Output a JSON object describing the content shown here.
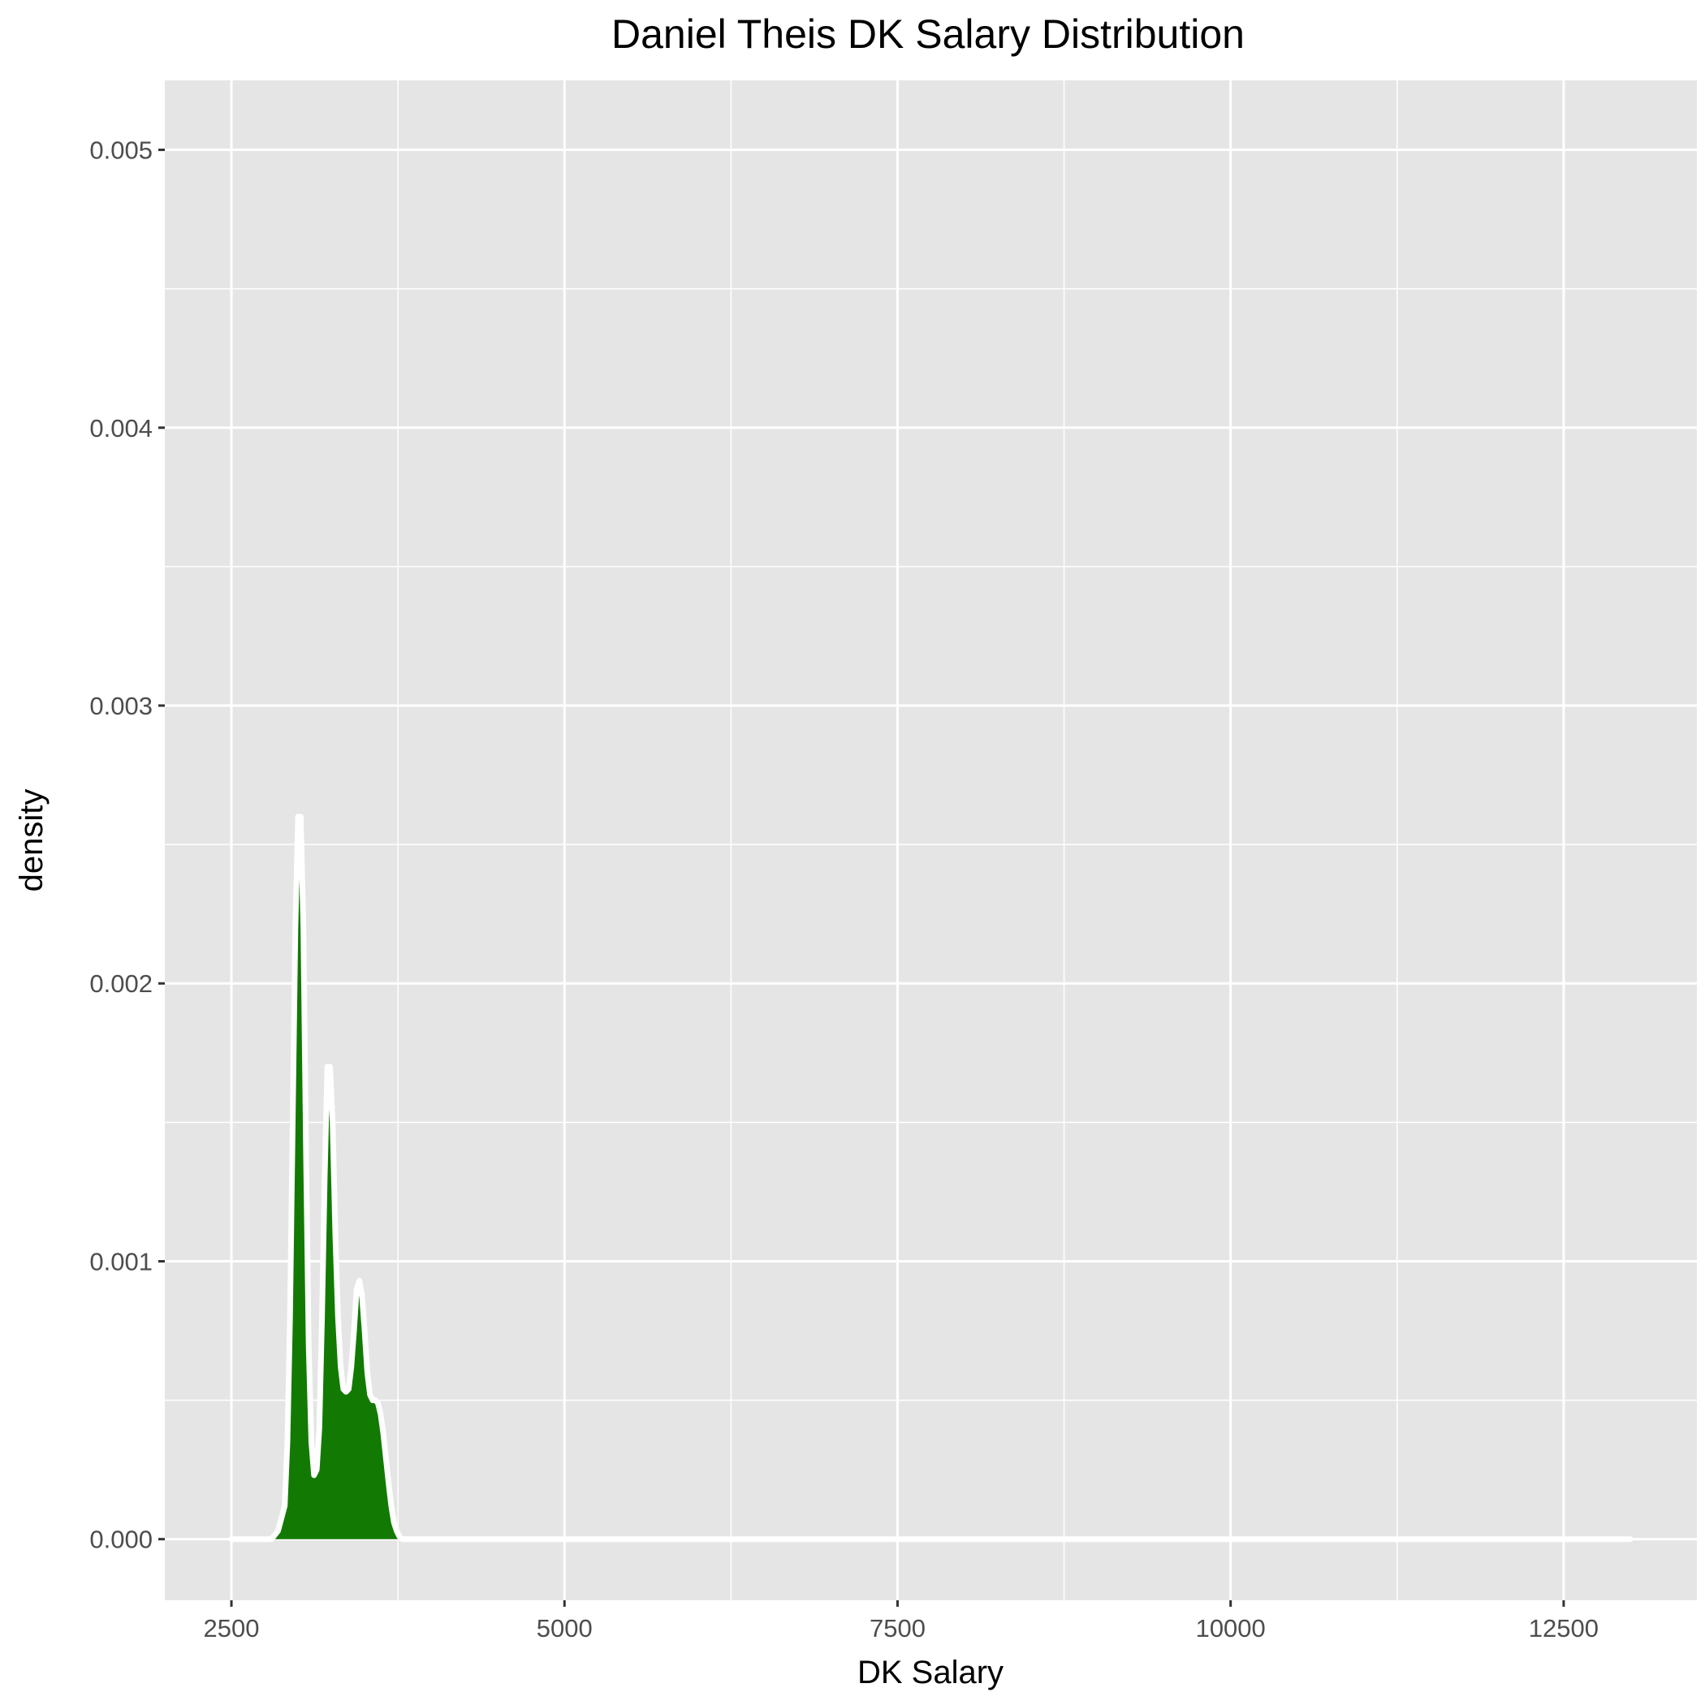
{
  "chart_data": {
    "type": "area",
    "title": "Daniel Theis DK Salary Distribution",
    "xlabel": "DK Salary",
    "ylabel": "density",
    "xlim": [
      2000,
      13500
    ],
    "ylim": [
      -0.00022,
      0.00525
    ],
    "x_ticks": [
      2500,
      5000,
      7500,
      10000,
      12500
    ],
    "x_tick_labels": [
      "2500",
      "5000",
      "7500",
      "10000",
      "12500"
    ],
    "y_ticks": [
      0,
      0.001,
      0.002,
      0.003,
      0.004,
      0.005
    ],
    "y_tick_labels": [
      "0.000",
      "0.001",
      "0.002",
      "0.003",
      "0.004",
      "0.005"
    ],
    "grid": true,
    "legend": "none",
    "series": [
      {
        "fill_color": "#127a03",
        "outline_color": "#ffffff",
        "x": [
          2500,
          2800,
          2850,
          2900,
          2920,
          2940,
          2960,
          2980,
          3000,
          3020,
          3040,
          3060,
          3080,
          3100,
          3120,
          3140,
          3160,
          3180,
          3200,
          3220,
          3240,
          3260,
          3280,
          3300,
          3320,
          3340,
          3360,
          3380,
          3400,
          3420,
          3440,
          3460,
          3480,
          3500,
          3520,
          3540,
          3560,
          3580,
          3600,
          3620,
          3640,
          3660,
          3680,
          3700,
          3720,
          3740,
          3760,
          3780,
          3800,
          3820,
          3840,
          3860,
          3880,
          3900,
          3920,
          3940,
          3960,
          3980,
          4000,
          4050,
          13000
        ],
        "y": [
          0,
          0,
          3e-05,
          0.00012,
          0.00035,
          0.0008,
          0.0015,
          0.0022,
          0.0026,
          0.0026,
          0.0022,
          0.0014,
          0.0007,
          0.00035,
          0.00023,
          0.00025,
          0.0004,
          0.0008,
          0.0013,
          0.0017,
          0.0017,
          0.0015,
          0.0011,
          0.0008,
          0.00062,
          0.00054,
          0.00053,
          0.00054,
          0.00062,
          0.00075,
          0.0009,
          0.00093,
          0.00088,
          0.00075,
          0.0006,
          0.00052,
          0.0005,
          0.0005,
          0.00049,
          0.00045,
          0.00038,
          0.00029,
          0.0002,
          0.00012,
          6e-05,
          3e-05,
          1e-05,
          0,
          0,
          0,
          0,
          0,
          0,
          0,
          0,
          0,
          0,
          0,
          0,
          0,
          0
        ]
      }
    ]
  }
}
